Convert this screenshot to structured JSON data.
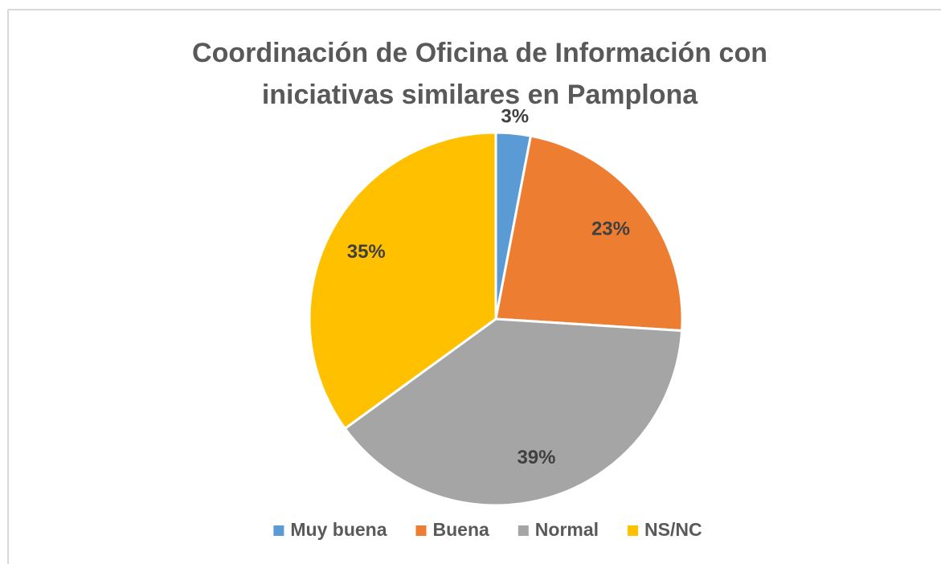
{
  "chart_data": {
    "type": "pie",
    "title": "Coordinación de Oficina de Información con iniciativas similares en Pamplona",
    "categories": [
      "Muy buena",
      "Buena",
      "Normal",
      "NS/NC"
    ],
    "values": [
      3,
      23,
      39,
      35
    ],
    "value_labels": [
      "3%",
      "23%",
      "39%",
      "35%"
    ],
    "colors": [
      "#5b9bd5",
      "#ed7d31",
      "#a5a5a5",
      "#ffc000"
    ],
    "legend": "bottom"
  }
}
